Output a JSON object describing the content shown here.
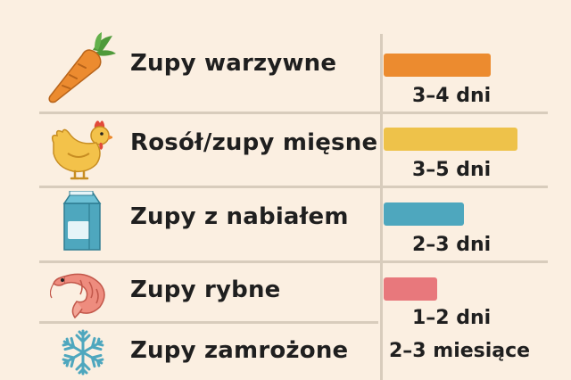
{
  "chart_data": {
    "type": "bar",
    "categories": [
      "Zupy warzywne",
      "Rosół/zupy mięsne",
      "Zupy z nabiałem",
      "Zupy rybne",
      "Zupy zamrożone"
    ],
    "duration_labels": [
      "3–4 dni",
      "3–5 dni",
      "2–3 dni",
      "1–2 dni",
      "2–3 miesiące"
    ],
    "values_days_max": [
      4,
      5,
      3,
      2,
      null
    ],
    "colors": [
      "#ec8b2f",
      "#eec24a",
      "#4ea7be",
      "#e8787c",
      null
    ],
    "icons": [
      "carrot-icon",
      "chicken-icon",
      "milk-carton-icon",
      "shrimp-icon",
      "snowflake-icon"
    ],
    "xlim": [
      0,
      5
    ]
  }
}
